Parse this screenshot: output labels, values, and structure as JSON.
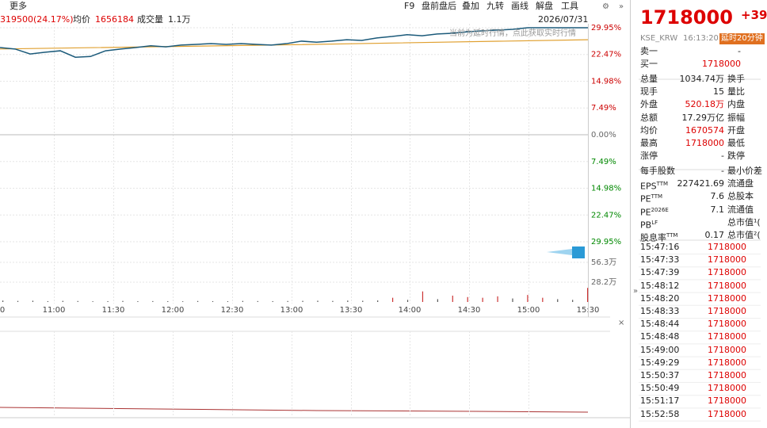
{
  "toolbar": {
    "left": "更多",
    "items": [
      "F9",
      "盘前盘后",
      "叠加",
      "九转",
      "画线",
      "解盘",
      "工具"
    ]
  },
  "info": {
    "change": "319500(24.17%)",
    "avg_label": "均价",
    "avg": "1656184",
    "vol_label": "成交量",
    "vol": "1.1万",
    "date": "2026/07/31",
    "notice": "当前为延时行情，点此获取实时行情"
  },
  "chart": {
    "price_ticks": [
      {
        "value": 29.95,
        "label": "29.95%"
      },
      {
        "value": 22.47,
        "label": "22.47%"
      },
      {
        "value": 14.98,
        "label": "14.98%"
      },
      {
        "value": 7.49,
        "label": "7.49%"
      },
      {
        "value": 0,
        "label": "0.00%"
      },
      {
        "value": -7.49,
        "label": "7.49%"
      },
      {
        "value": -14.98,
        "label": "14.98%"
      },
      {
        "value": -22.47,
        "label": "22.47%"
      },
      {
        "value": -29.95,
        "label": "29.95%"
      }
    ],
    "ylim": [
      -29.95,
      29.95
    ],
    "volume_ticks": [
      {
        "value": 563000,
        "label": "56.3万"
      },
      {
        "value": 282000,
        "label": "28.2万"
      }
    ],
    "time_labels": [
      "0",
      "11:00",
      "11:30",
      "12:00",
      "12:30",
      "13:00",
      "13:30",
      "14:00",
      "14:30",
      "15:00",
      "15:30"
    ],
    "price": [
      24.4,
      24.0,
      22.6,
      23.1,
      23.5,
      21.7,
      21.9,
      23.5,
      24.0,
      24.4,
      24.9,
      24.6,
      25.1,
      25.3,
      25.5,
      25.3,
      25.5,
      25.3,
      25.1,
      25.5,
      26.2,
      25.9,
      26.2,
      26.6,
      26.4,
      27.1,
      27.5,
      28.0,
      27.7,
      28.2,
      28.4,
      28.8,
      29.1,
      29.3,
      29.5,
      29.95,
      29.95,
      29.95,
      29.95,
      29.95
    ],
    "average": [
      24.0,
      25.2,
      26.6
    ],
    "volume": [
      20000,
      15000,
      18000,
      12000,
      16000,
      14000,
      10000,
      12000,
      15000,
      11000,
      13000,
      12000,
      10000,
      14000,
      12000,
      11000,
      15000,
      13000,
      12000,
      14000,
      16000,
      18000,
      15000,
      20000,
      17000,
      22000,
      60000,
      30000,
      150000,
      40000,
      90000,
      70000,
      60000,
      80000,
      50000,
      100000,
      60000,
      40000,
      30000,
      200000
    ]
  },
  "quote": {
    "price": "1718000",
    "change": "+39",
    "exchange": "KSE_KRW",
    "time": "16:13:20",
    "delay": "延时20分钟",
    "rows": [
      {
        "label": "卖一",
        "value": "-"
      },
      {
        "label": "买一",
        "value": "1718000"
      },
      {
        "label": "总量",
        "value": "1034.74万",
        "label2": "换手"
      },
      {
        "label": "现手",
        "value": "15",
        "label2": "量比"
      },
      {
        "label": "外盘",
        "value": "520.18万",
        "label2": "内盘"
      },
      {
        "label": "总额",
        "value": "17.29万亿",
        "label2": "振幅"
      },
      {
        "label": "均价",
        "value": "1670574",
        "label2": "开盘"
      },
      {
        "label": "最高",
        "value": "1718000",
        "label2": "最低"
      },
      {
        "label": "涨停",
        "value": "-",
        "label2": "跌停"
      },
      {
        "label": "每手股数",
        "value": "-",
        "label2": "最小价差"
      },
      {
        "label": "EPS",
        "sup": "TTM",
        "value": "227421.69",
        "label2": "流通盘"
      },
      {
        "label": "PE",
        "sup": "TTM",
        "value": "7.6",
        "label2": "总股本"
      },
      {
        "label": "PE",
        "sup": "2026E",
        "value": "7.1",
        "label2": "流通值"
      },
      {
        "label": "PB",
        "sup": "LF",
        "label2": "总市值¹("
      },
      {
        "label": "股息率",
        "sup": "TTM",
        "value": "0.17",
        "label2": "总市值²("
      }
    ]
  },
  "trades": [
    {
      "time": "15:47:16",
      "price": "1718000"
    },
    {
      "time": "15:47:33",
      "price": "1718000"
    },
    {
      "time": "15:47:39",
      "price": "1718000"
    },
    {
      "time": "15:48:12",
      "price": "1718000"
    },
    {
      "time": "15:48:20",
      "price": "1718000"
    },
    {
      "time": "15:48:33",
      "price": "1718000"
    },
    {
      "time": "15:48:44",
      "price": "1718000"
    },
    {
      "time": "15:48:48",
      "price": "1718000"
    },
    {
      "time": "15:49:00",
      "price": "1718000"
    },
    {
      "time": "15:49:29",
      "price": "1718000"
    },
    {
      "time": "15:50:37",
      "price": "1718000"
    },
    {
      "time": "15:50:49",
      "price": "1718000"
    },
    {
      "time": "15:51:17",
      "price": "1718000"
    },
    {
      "time": "15:52:58",
      "price": "1718000"
    }
  ]
}
